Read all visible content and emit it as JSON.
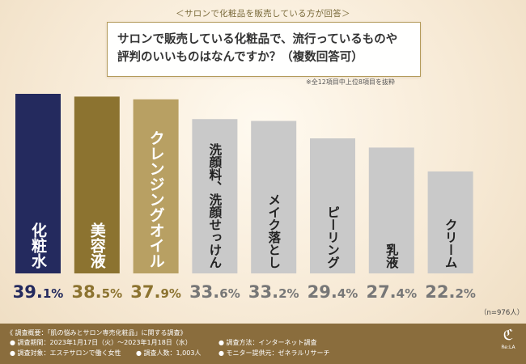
{
  "header": {
    "subtitle": "＜サロンで化粧品を販売している方が回答＞",
    "question_line1": "サロンで販売している化粧品で、流行っているものや",
    "question_line2": "評判のいいものはなんですか？（複数回答可）",
    "note": "※全12項目中上位8項目を抜粋"
  },
  "sample_note": "（n=976人）",
  "colors": {
    "bar_top1": "#242a5e",
    "bar_top2": "#8c7330",
    "bar_top3": "#b8a063",
    "bar_other": "#c9c9c9",
    "label_dark": "#222222",
    "label_light": "#ffffff"
  },
  "chart_data": {
    "type": "bar",
    "categories": [
      "化粧水",
      "美容液",
      "クレンジングオイル",
      "洗顔料、洗顔せっけん",
      "メイク落とし",
      "ピーリング",
      "乳液",
      "クリーム"
    ],
    "values": [
      39.1,
      38.5,
      37.9,
      33.6,
      33.2,
      29.4,
      27.4,
      22.2
    ],
    "value_labels": [
      "39.1%",
      "38.5%",
      "37.9%",
      "33.6%",
      "33.2%",
      "29.4%",
      "27.4%",
      "22.2%"
    ],
    "title": "サロンで販売している化粧品で、流行っているものや評判のいいものはなんですか？（複数回答可）",
    "xlabel": "",
    "ylabel": "",
    "ylim": [
      0,
      39.1
    ]
  },
  "footer": {
    "summary": "《 調査概要：「肌の悩みとサロン専売化粧品」に関する調査》",
    "period": "● 調査期間：2023年1月17日（火）〜2023年1月18日（水）",
    "method": "● 調査方法：インターネット調査",
    "target": "● 調査対象：エステサロンで働く女性",
    "count": "● 調査人数：1,003人",
    "provider": "● モニター提供元：ゼネラルリサーチ"
  },
  "logo": {
    "mark": "ℭ",
    "text": "Re:LA"
  }
}
